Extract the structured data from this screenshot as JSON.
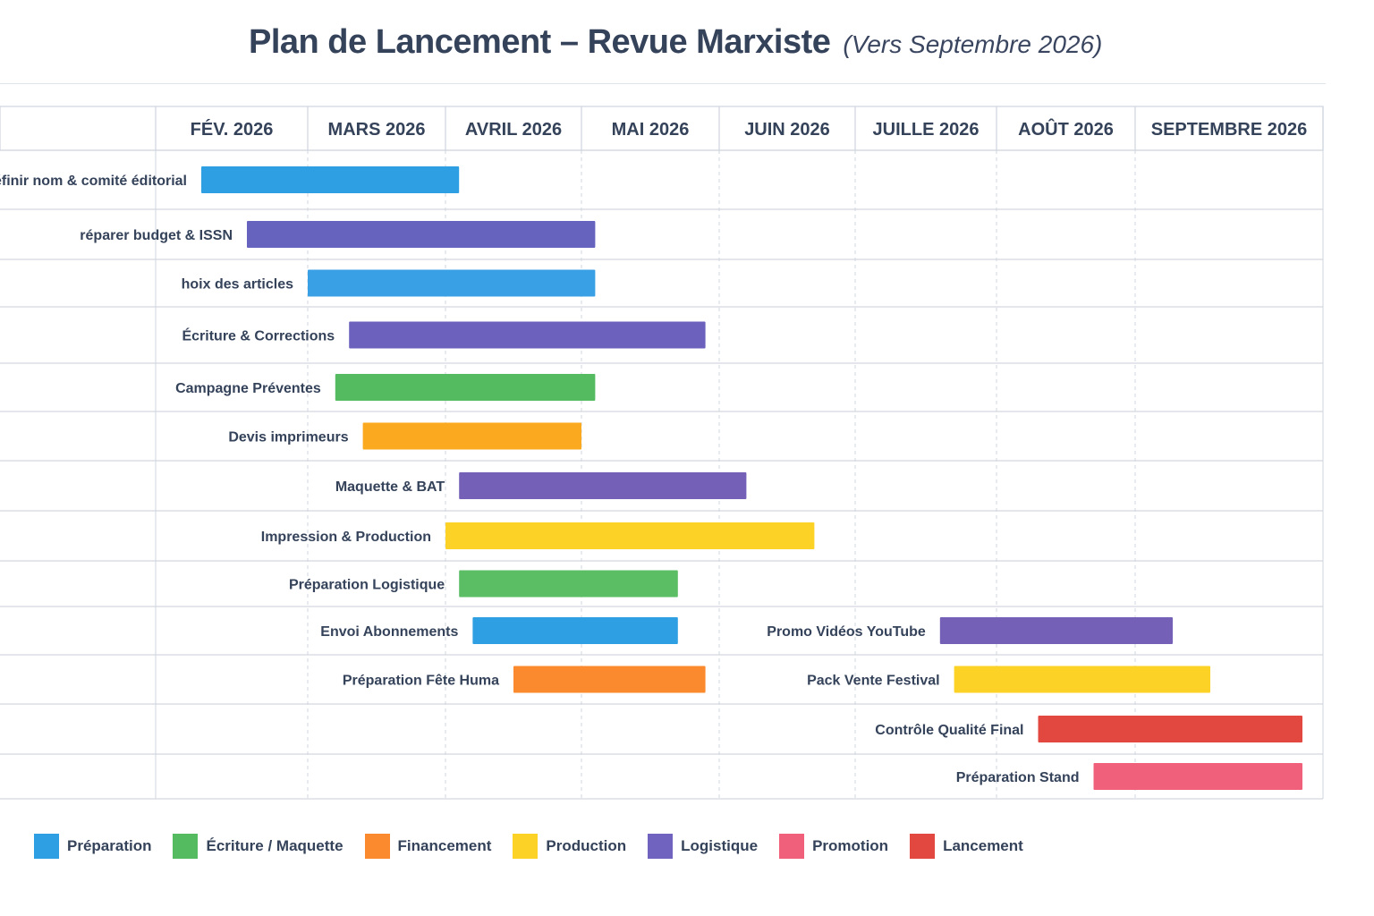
{
  "title": "Plan de Lancement – Revue Marxiste",
  "subtitle": "(Vers Septembre 2026)",
  "colors": {
    "preparation": "#2d9fe2",
    "ecriture": "#55bb60",
    "financement": "#fb8a2e",
    "production": "#fcd227",
    "logistique": "#6f63bf",
    "promotion": "#f1607a",
    "lancement": "#e24840",
    "amber": "#fba91e"
  },
  "legend": [
    {
      "label": "Préparation",
      "color": "#2d9fe2"
    },
    {
      "label": "Écriture / Maquette",
      "color": "#55bb60"
    },
    {
      "label": "Financement",
      "color": "#fb8a2e"
    },
    {
      "label": "Production",
      "color": "#fcd227"
    },
    {
      "label": "Logistique",
      "color": "#6f63bf"
    },
    {
      "label": "Promotion",
      "color": "#f1607a"
    },
    {
      "label": "Lancement",
      "color": "#e24840"
    }
  ],
  "chart_data": {
    "type": "gantt",
    "title": "Plan de Lancement – Revue Marxiste",
    "subtitle": "(Vers Septembre 2026)",
    "x_unit": "months since start of Feb 2026",
    "months": [
      "FÉV. 2026",
      "MARS 2026",
      "AVRIL 2026",
      "MAI 2026",
      "JUIN 2026",
      "JUILLE 2026",
      "AOÛT 2026",
      "SEPTEMBRE 2026"
    ],
    "xlim": [
      0,
      8
    ],
    "grid": true,
    "legend_position": "bottom-left",
    "tasks": [
      {
        "label": "éfinir nom & comité éditorial",
        "start": 0.3,
        "end": 2.1,
        "category": "Préparation",
        "color": "#2d9fe2",
        "row": 0
      },
      {
        "label": "réparer budget & ISSN",
        "start": 0.6,
        "end": 3.1,
        "category": "Logistique",
        "color": "#6663bf",
        "row": 1
      },
      {
        "label": "hoix des articles",
        "start": 1.0,
        "end": 3.1,
        "category": "Préparation",
        "color": "#3aa0e6",
        "row": 2
      },
      {
        "label": "Écriture & Corrections",
        "start": 1.3,
        "end": 3.9,
        "category": "Logistique",
        "color": "#6c62bd",
        "row": 3
      },
      {
        "label": "Campagne Préventes",
        "start": 1.2,
        "end": 3.1,
        "category": "Écriture / Maquette",
        "color": "#55bb60",
        "row": 4
      },
      {
        "label": "Devis imprimeurs",
        "start": 1.4,
        "end": 3.0,
        "category": "Financement",
        "color": "#fba91e",
        "row": 5
      },
      {
        "label": "Maquette & BAT",
        "start": 2.1,
        "end": 4.2,
        "category": "Logistique",
        "color": "#7560b8",
        "row": 6
      },
      {
        "label": "Impression & Production",
        "start": 2.0,
        "end": 4.7,
        "category": "Production",
        "color": "#fcd227",
        "row": 7
      },
      {
        "label": "Préparation Logistique",
        "start": 2.1,
        "end": 3.7,
        "category": "Écriture / Maquette",
        "color": "#5bbd64",
        "row": 8
      },
      {
        "label": "Envoi Abonnements",
        "start": 2.2,
        "end": 3.7,
        "category": "Préparation",
        "color": "#2d9fe2",
        "row": 9
      },
      {
        "label": "Promo Vidéos YouTube",
        "start": 5.6,
        "end": 7.2,
        "category": "Logistique",
        "color": "#7560b8",
        "row": 9
      },
      {
        "label": "Préparation Fête Huma",
        "start": 2.5,
        "end": 3.9,
        "category": "Financement",
        "color": "#fb8a2e",
        "row": 10
      },
      {
        "label": "Pack Vente Festival",
        "start": 5.7,
        "end": 7.4,
        "category": "Production",
        "color": "#fcd227",
        "row": 10
      },
      {
        "label": "Contrôle Qualité Final",
        "start": 6.3,
        "end": 7.9,
        "category": "Lancement",
        "color": "#e24840",
        "row": 11
      },
      {
        "label": "Préparation Stand",
        "start": 6.7,
        "end": 8.2,
        "category": "Promotion",
        "color": "#f1607a",
        "row": 12
      }
    ]
  }
}
